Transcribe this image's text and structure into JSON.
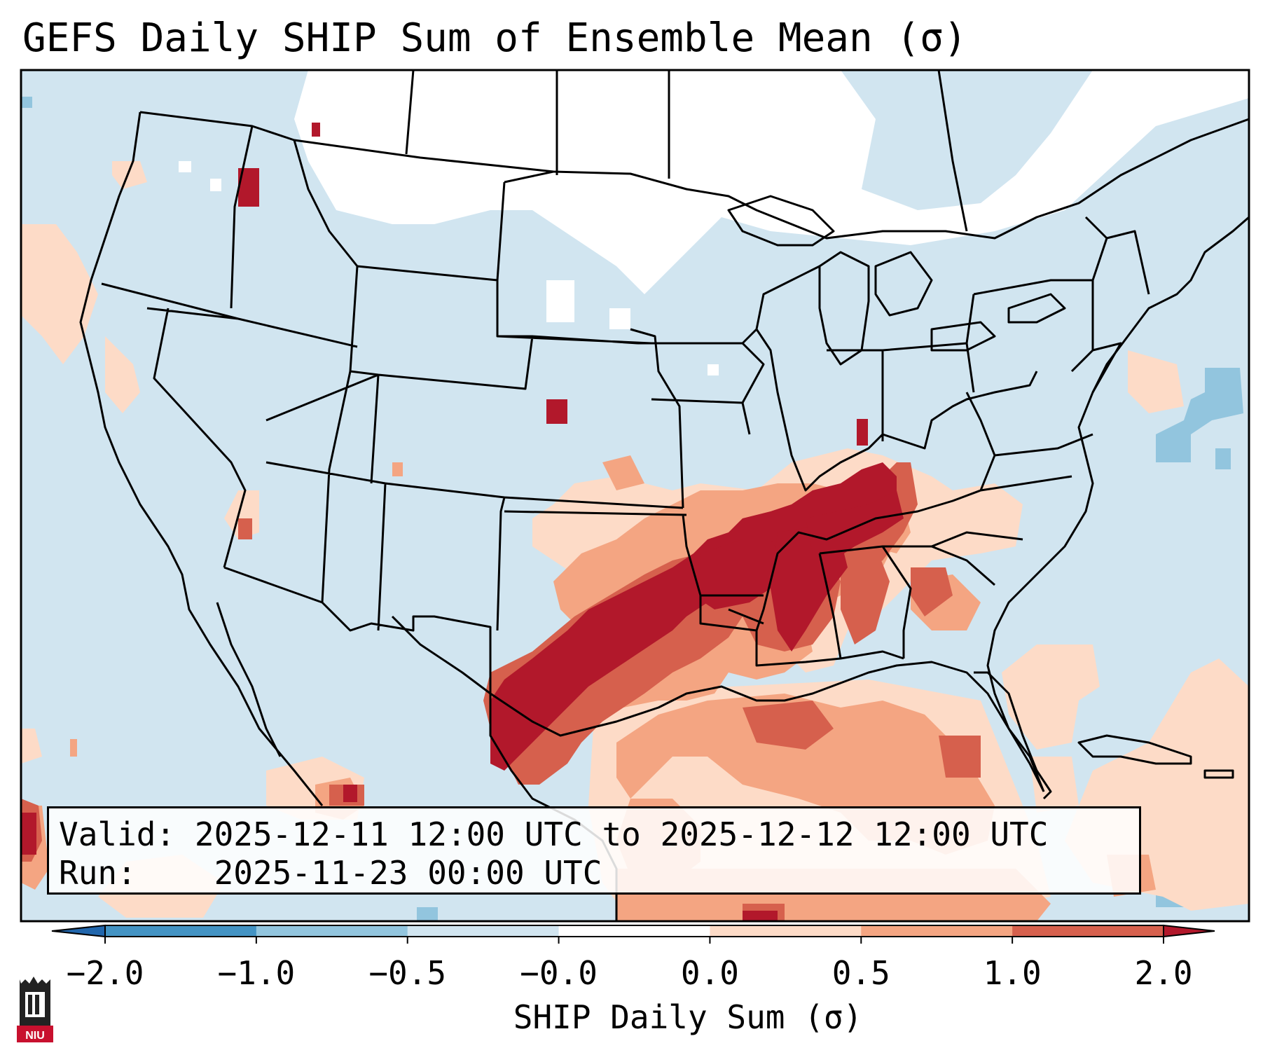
{
  "title": "GEFS Daily SHIP Sum of Ensemble Mean (σ)",
  "info": {
    "valid_label": "Valid:",
    "valid_value": "2025-12-11 12:00 UTC to 2025-12-12 12:00 UTC",
    "run_label": "Run:",
    "run_value": "2025-11-23 00:00 UTC"
  },
  "colorbar": {
    "label": "SHIP Daily Sum (σ)",
    "ticks": [
      "−2.0",
      "−1.0",
      "−0.5",
      "−0.0",
      "0.0",
      "0.5",
      "1.0",
      "2.0"
    ],
    "bin_colors": [
      "#4393c3",
      "#92c5de",
      "#d1e5f0",
      "#ffffff",
      "#fddbc7",
      "#f4a582",
      "#d6604d"
    ],
    "under_color": "#2166ac",
    "over_color": "#b2182b"
  },
  "map_colors": {
    "ocean_land_base": "#d1e5f0",
    "neutral": "#ffffff",
    "light_red": "#fddbc7",
    "mid_red": "#f4a582",
    "red": "#d6604d",
    "dark_red": "#b2182b",
    "mid_blue": "#92c5de",
    "border": "#000000"
  },
  "logo": {
    "text": "NIU",
    "color": "#c8102e"
  }
}
